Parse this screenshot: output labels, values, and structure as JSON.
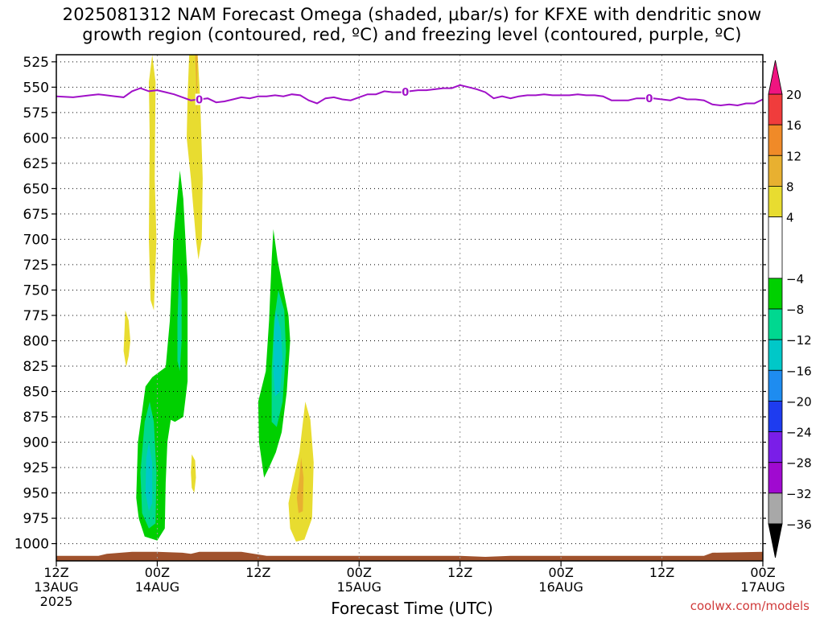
{
  "title_line1": "2025081312 NAM Forecast Omega (shaded, μbar/s) for KFXE with dendritic snow",
  "title_line2": "growth region (contoured, red, ºC) and freezing level (contoured, purple, ºC)",
  "credit": "coolwx.com/models",
  "chart_data": {
    "type": "heatmap",
    "xlabel": "Forecast Time (UTC)",
    "ylabel": "",
    "x_range_hours": [
      0,
      84
    ],
    "y_range_hpa": [
      1017,
      518
    ],
    "x_ticks": [
      {
        "hour": 0,
        "label": "12Z",
        "sub": "13AUG",
        "year": "2025"
      },
      {
        "hour": 12,
        "label": "00Z",
        "sub": "14AUG"
      },
      {
        "hour": 24,
        "label": "12Z"
      },
      {
        "hour": 36,
        "label": "00Z",
        "sub": "15AUG"
      },
      {
        "hour": 48,
        "label": "12Z"
      },
      {
        "hour": 60,
        "label": "00Z",
        "sub": "16AUG"
      },
      {
        "hour": 72,
        "label": "12Z"
      },
      {
        "hour": 84,
        "label": "00Z",
        "sub": "17AUG"
      }
    ],
    "y_ticks": [
      "525",
      "550",
      "575",
      "600",
      "625",
      "650",
      "675",
      "700",
      "725",
      "750",
      "775",
      "800",
      "825",
      "850",
      "875",
      "900",
      "925",
      "950",
      "975",
      "1000"
    ],
    "colorbar": {
      "labels": [
        "20",
        "16",
        "12",
        "8",
        "4",
        "−4",
        "−8",
        "−12",
        "−16",
        "−20",
        "−24",
        "−28",
        "−32",
        "−36"
      ],
      "bands": [
        {
          "from": 16,
          "to": 20,
          "color": "#f03c3c"
        },
        {
          "from": 12,
          "to": 16,
          "color": "#f08a28"
        },
        {
          "from": 8,
          "to": 12,
          "color": "#e8b030"
        },
        {
          "from": 4,
          "to": 8,
          "color": "#e8dc30"
        },
        {
          "from": -4,
          "to": 4,
          "color": "#ffffff"
        },
        {
          "from": -8,
          "to": -4,
          "color": "#00d000"
        },
        {
          "from": -12,
          "to": -8,
          "color": "#00d890"
        },
        {
          "from": -16,
          "to": -12,
          "color": "#00c8c8"
        },
        {
          "from": -20,
          "to": -16,
          "color": "#1e8cf0"
        },
        {
          "from": -24,
          "to": -20,
          "color": "#1e3cf0"
        },
        {
          "from": -28,
          "to": -24,
          "color": "#7a1ee8"
        },
        {
          "from": -32,
          "to": -28,
          "color": "#a00ad0"
        },
        {
          "from": -36,
          "to": -32,
          "color": "#a8a8a8"
        }
      ],
      "top_arrow_color": "#f01480",
      "bottom_arrow_color": "#000000"
    },
    "freezing_level": {
      "label": "0",
      "color": "#a010c8",
      "label_hours": [
        17.0,
        41.5,
        70.5
      ],
      "points": [
        [
          0,
          559
        ],
        [
          2,
          560
        ],
        [
          4,
          558
        ],
        [
          5,
          557
        ],
        [
          7,
          559
        ],
        [
          8,
          560
        ],
        [
          9,
          554
        ],
        [
          10,
          551
        ],
        [
          11,
          554
        ],
        [
          12,
          553
        ],
        [
          13,
          555
        ],
        [
          14,
          557
        ],
        [
          15,
          560
        ],
        [
          16,
          563
        ],
        [
          17,
          562
        ],
        [
          18,
          561
        ],
        [
          19,
          565
        ],
        [
          20,
          564
        ],
        [
          21,
          562
        ],
        [
          22,
          560
        ],
        [
          23,
          561
        ],
        [
          24,
          559
        ],
        [
          25,
          559
        ],
        [
          26,
          558
        ],
        [
          27,
          559
        ],
        [
          28,
          557
        ],
        [
          29,
          558
        ],
        [
          30,
          563
        ],
        [
          31,
          566
        ],
        [
          32,
          561
        ],
        [
          33,
          560
        ],
        [
          34,
          562
        ],
        [
          35,
          563
        ],
        [
          36,
          560
        ],
        [
          37,
          557
        ],
        [
          38,
          557
        ],
        [
          39,
          554
        ],
        [
          40,
          555
        ],
        [
          41,
          555
        ],
        [
          42,
          554
        ],
        [
          43,
          553
        ],
        [
          44,
          553
        ],
        [
          45,
          552
        ],
        [
          46,
          551
        ],
        [
          47,
          551
        ],
        [
          48,
          548
        ],
        [
          49,
          550
        ],
        [
          50,
          552
        ],
        [
          51,
          555
        ],
        [
          52,
          561
        ],
        [
          53,
          559
        ],
        [
          54,
          561
        ],
        [
          55,
          559
        ],
        [
          56,
          558
        ],
        [
          57,
          558
        ],
        [
          58,
          557
        ],
        [
          59,
          558
        ],
        [
          60,
          558
        ],
        [
          61,
          558
        ],
        [
          62,
          557
        ],
        [
          63,
          558
        ],
        [
          64,
          558
        ],
        [
          65,
          559
        ],
        [
          66,
          563
        ],
        [
          67,
          563
        ],
        [
          68,
          563
        ],
        [
          69,
          561
        ],
        [
          70,
          561
        ],
        [
          71,
          561
        ],
        [
          72,
          562
        ],
        [
          73,
          563
        ],
        [
          74,
          560
        ],
        [
          75,
          562
        ],
        [
          76,
          562
        ],
        [
          77,
          563
        ],
        [
          78,
          567
        ],
        [
          79,
          568
        ],
        [
          80,
          567
        ],
        [
          81,
          568
        ],
        [
          82,
          566
        ],
        [
          83,
          566
        ],
        [
          84,
          562
        ]
      ]
    },
    "terrain": {
      "color": "#a0522d",
      "top_hpa": [
        [
          0,
          1012
        ],
        [
          5,
          1012
        ],
        [
          6,
          1010
        ],
        [
          9,
          1008
        ],
        [
          12,
          1008
        ],
        [
          15,
          1009
        ],
        [
          16,
          1010
        ],
        [
          17,
          1008
        ],
        [
          22,
          1008
        ],
        [
          25,
          1012
        ],
        [
          40,
          1012
        ],
        [
          46,
          1012
        ],
        [
          48,
          1012
        ],
        [
          51,
          1013
        ],
        [
          54,
          1012
        ],
        [
          70,
          1012
        ],
        [
          77,
          1012
        ],
        [
          78,
          1009
        ],
        [
          84,
          1008
        ]
      ]
    },
    "shaded_regions": [
      {
        "band": "4 to 8",
        "points": [
          [
            11.4,
            518
          ],
          [
            11.8,
            545
          ],
          [
            11.7,
            640
          ],
          [
            11.9,
            700
          ],
          [
            11.6,
            770
          ],
          [
            11.2,
            760
          ],
          [
            11.0,
            700
          ],
          [
            11.1,
            600
          ],
          [
            11.0,
            545
          ]
        ]
      },
      {
        "band": "4 to 8",
        "points": [
          [
            15.8,
            518
          ],
          [
            16.8,
            518
          ],
          [
            17.1,
            560
          ],
          [
            17.4,
            640
          ],
          [
            17.3,
            700
          ],
          [
            16.9,
            720
          ],
          [
            16.6,
            700
          ],
          [
            16.0,
            640
          ],
          [
            15.5,
            600
          ],
          [
            15.6,
            560
          ]
        ]
      },
      {
        "band": "8 to 12",
        "points": [
          [
            16.5,
            518
          ],
          [
            16.8,
            518
          ],
          [
            16.7,
            580
          ],
          [
            16.6,
            540
          ]
        ]
      },
      {
        "band": "4 to 8",
        "points": [
          [
            8.2,
            770
          ],
          [
            8.6,
            780
          ],
          [
            8.8,
            800
          ],
          [
            8.6,
            815
          ],
          [
            8.3,
            826
          ],
          [
            8.0,
            810
          ],
          [
            8.1,
            790
          ]
        ]
      },
      {
        "band": "4 to 8",
        "points": [
          [
            16.1,
            912
          ],
          [
            16.5,
            918
          ],
          [
            16.6,
            935
          ],
          [
            16.4,
            950
          ],
          [
            16.1,
            945
          ],
          [
            16.0,
            930
          ]
        ]
      },
      {
        "band": "4 to 8",
        "points": [
          [
            29.6,
            860
          ],
          [
            30.2,
            878
          ],
          [
            30.6,
            920
          ],
          [
            30.4,
            975
          ],
          [
            29.5,
            996
          ],
          [
            28.5,
            998
          ],
          [
            27.8,
            985
          ],
          [
            27.6,
            960
          ],
          [
            28.1,
            940
          ],
          [
            28.9,
            910
          ]
        ]
      },
      {
        "band": "8 to 12",
        "points": [
          [
            29.1,
            915
          ],
          [
            29.4,
            935
          ],
          [
            29.3,
            968
          ],
          [
            28.8,
            970
          ],
          [
            28.6,
            955
          ],
          [
            28.9,
            935
          ]
        ]
      },
      {
        "band": "-8 to -4",
        "points": [
          [
            14.7,
            632
          ],
          [
            15.1,
            660
          ],
          [
            15.6,
            740
          ],
          [
            15.6,
            840
          ],
          [
            15.1,
            875
          ],
          [
            14.1,
            880
          ],
          [
            13.6,
            878
          ],
          [
            13.2,
            900
          ],
          [
            13.0,
            940
          ],
          [
            12.9,
            985
          ],
          [
            12.0,
            997
          ],
          [
            10.5,
            993
          ],
          [
            9.8,
            975
          ],
          [
            9.5,
            955
          ],
          [
            9.7,
            900
          ],
          [
            10.2,
            870
          ],
          [
            10.6,
            845
          ],
          [
            11.4,
            836
          ],
          [
            13.0,
            826
          ],
          [
            13.5,
            780
          ],
          [
            13.9,
            700
          ]
        ]
      },
      {
        "band": "-12 to -8",
        "points": [
          [
            14.6,
            730
          ],
          [
            14.9,
            760
          ],
          [
            14.9,
            800
          ],
          [
            14.7,
            830
          ],
          [
            14.4,
            820
          ],
          [
            14.4,
            780
          ]
        ]
      },
      {
        "band": "-12 to -8",
        "points": [
          [
            11.1,
            860
          ],
          [
            11.6,
            880
          ],
          [
            11.9,
            930
          ],
          [
            11.8,
            980
          ],
          [
            11.0,
            985
          ],
          [
            10.2,
            970
          ],
          [
            10.0,
            930
          ],
          [
            10.5,
            880
          ]
        ]
      },
      {
        "band": "-16 to -12",
        "points": [
          [
            11.0,
            900
          ],
          [
            11.4,
            920
          ],
          [
            11.4,
            960
          ],
          [
            11.0,
            968
          ],
          [
            10.6,
            950
          ],
          [
            10.7,
            915
          ]
        ]
      },
      {
        "band": "-8 to -4",
        "points": [
          [
            25.8,
            690
          ],
          [
            26.3,
            720
          ],
          [
            27.0,
            750
          ],
          [
            27.6,
            775
          ],
          [
            27.8,
            800
          ],
          [
            27.4,
            850
          ],
          [
            26.8,
            890
          ],
          [
            26.1,
            910
          ],
          [
            25.3,
            925
          ],
          [
            24.7,
            935
          ],
          [
            24.1,
            900
          ],
          [
            24.0,
            860
          ],
          [
            24.9,
            830
          ],
          [
            25.3,
            780
          ],
          [
            25.6,
            720
          ]
        ]
      },
      {
        "band": "-12 to -8",
        "points": [
          [
            26.4,
            750
          ],
          [
            27.1,
            770
          ],
          [
            27.3,
            810
          ],
          [
            26.9,
            860
          ],
          [
            26.2,
            885
          ],
          [
            25.6,
            880
          ],
          [
            25.6,
            830
          ],
          [
            25.9,
            780
          ]
        ]
      },
      {
        "band": "-16 to -12",
        "points": [
          [
            26.1,
            770
          ],
          [
            26.7,
            790
          ],
          [
            26.9,
            820
          ],
          [
            26.6,
            850
          ],
          [
            26.0,
            855
          ],
          [
            25.8,
            830
          ],
          [
            25.9,
            790
          ]
        ]
      }
    ]
  }
}
